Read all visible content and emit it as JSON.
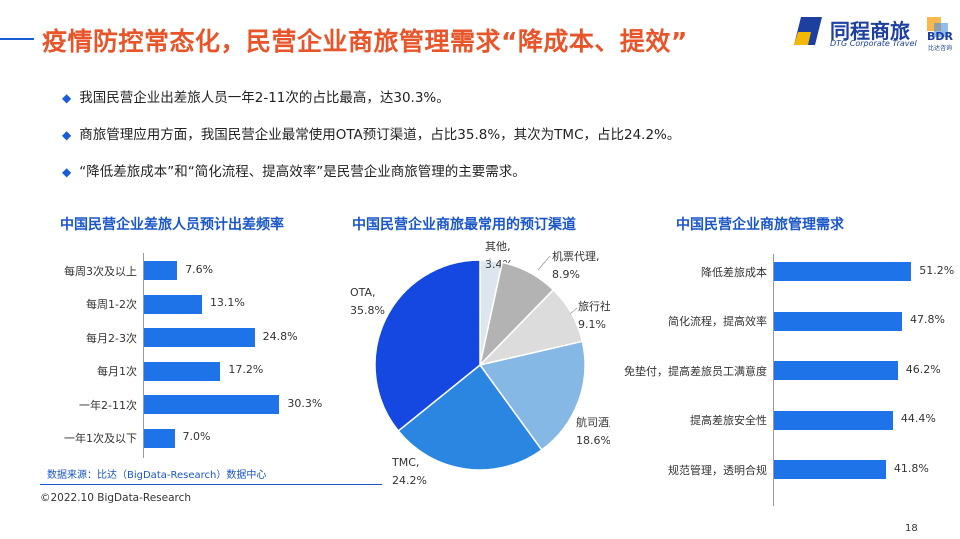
{
  "title": "疫情防控常态化，民营企业商旅管理需求“降成本、提效”",
  "logo": {
    "name": "同程商旅",
    "sub": "DTG Corporate Travel",
    "badge": "BDR",
    "badge_sub": "比达咨询"
  },
  "bullets": [
    "我国民营企业出差旅人员一年2-11次的占比最高，达30.3%。",
    "商旅管理应用方面，我国民营企业最常使用OTA预订渠道，占比35.8%，其次为TMC，占比24.2%。",
    "“降低差旅成本”和“简化流程、提高效率”是民营企业商旅管理的主要需求。"
  ],
  "colors": {
    "accent": "#e8552a",
    "brand": "#1a56c8",
    "bar": "#1e73e8"
  },
  "source": "数据来源：比达（BigData-Research）数据中心",
  "copyright": "©2022.10 BigData-Research",
  "page_number": "18",
  "chart_data": [
    {
      "type": "bar",
      "orientation": "horizontal",
      "title": "中国民营企业差旅人员预计出差频率",
      "categories": [
        "每周3次及以上",
        "每周1-2次",
        "每月2-3次",
        "每月1次",
        "一年2-11次",
        "一年1次及以下"
      ],
      "values": [
        7.6,
        13.1,
        24.8,
        17.2,
        30.3,
        7.0
      ],
      "value_labels": [
        "7.6%",
        "13.1%",
        "24.8%",
        "17.2%",
        "30.3%",
        "7.0%"
      ]
    },
    {
      "type": "pie",
      "title": "中国民营企业商旅最常用的预订渠道",
      "slices": [
        {
          "label": "其他,",
          "pct_label": "3.4%",
          "value": 3.4,
          "color": "#dde6ee"
        },
        {
          "label": "机票代理,",
          "pct_label": "8.9%",
          "value": 8.9,
          "color": "#b3b3b3"
        },
        {
          "label": "旅行社,",
          "pct_label": "9.1%",
          "value": 9.1,
          "color": "#dcdcdc"
        },
        {
          "label": "航司酒店直销,",
          "pct_label": "18.6%",
          "value": 18.6,
          "color": "#86b8e6"
        },
        {
          "label": "TMC,",
          "pct_label": "24.2%",
          "value": 24.2,
          "color": "#2a86e0"
        },
        {
          "label": "OTA,",
          "pct_label": "35.8%",
          "value": 35.8,
          "color": "#1448e0"
        }
      ]
    },
    {
      "type": "bar",
      "orientation": "horizontal",
      "title": "中国民营企业商旅管理需求",
      "categories": [
        "降低差旅成本",
        "简化流程，提高效率",
        "免垫付，提高差旅员工满意度",
        "提高差旅安全性",
        "规范管理，透明合规"
      ],
      "values": [
        51.2,
        47.8,
        46.2,
        44.4,
        41.8
      ],
      "value_labels": [
        "51.2%",
        "47.8%",
        "46.2%",
        "44.4%",
        "41.8%"
      ]
    }
  ]
}
